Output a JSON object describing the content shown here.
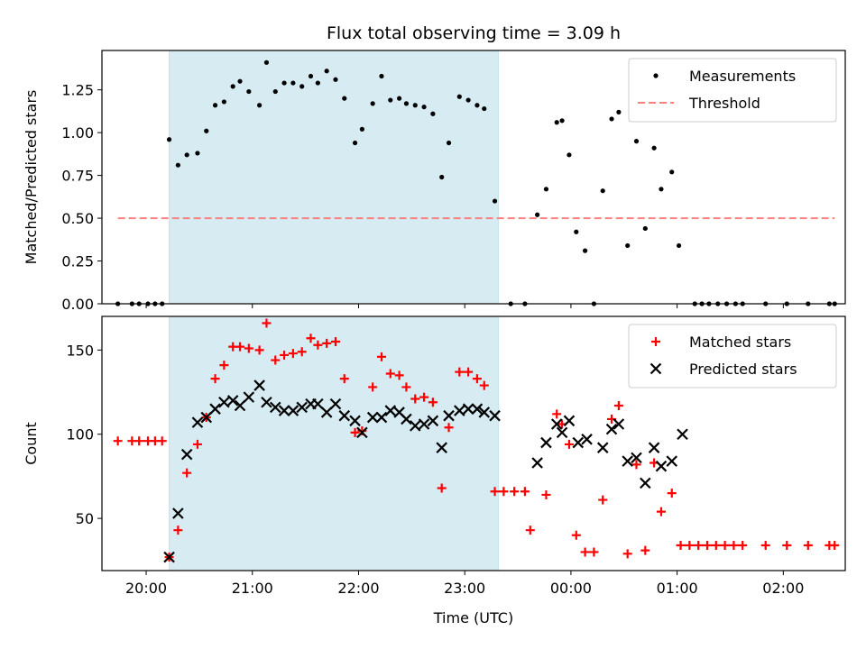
{
  "chart_data": [
    {
      "type": "scatter",
      "title": "Flux total observing time = 3.09 h",
      "xlabel": "",
      "ylabel": "Matched/Predicted stars",
      "ylim": [
        0,
        1.48
      ],
      "xlim": [
        "19:35",
        "02:35"
      ],
      "yticks": [
        0.0,
        0.25,
        0.5,
        0.75,
        1.0,
        1.25
      ],
      "yticklabels": [
        "0.00",
        "0.25",
        "0.50",
        "0.75",
        "1.00",
        "1.25"
      ],
      "shaded_span": {
        "start": "20:13",
        "end": "23:19",
        "color": "#add8e6"
      },
      "legend": {
        "placement": "top-right",
        "entries": [
          "Measurements",
          "Threshold"
        ]
      },
      "series": [
        {
          "name": "Measurements",
          "marker": "dot",
          "color": "#000000",
          "points": [
            [
              "19:44",
              0.0
            ],
            [
              "19:52",
              0.0
            ],
            [
              "19:56",
              0.0
            ],
            [
              "20:01",
              0.0
            ],
            [
              "20:05",
              0.0
            ],
            [
              "20:09",
              0.0
            ],
            [
              "20:13",
              0.96
            ],
            [
              "20:18",
              0.81
            ],
            [
              "20:23",
              0.87
            ],
            [
              "20:29",
              0.88
            ],
            [
              "20:34",
              1.01
            ],
            [
              "20:39",
              1.16
            ],
            [
              "20:44",
              1.18
            ],
            [
              "20:49",
              1.27
            ],
            [
              "20:53",
              1.3
            ],
            [
              "20:58",
              1.24
            ],
            [
              "21:04",
              1.16
            ],
            [
              "21:08",
              1.41
            ],
            [
              "21:13",
              1.24
            ],
            [
              "21:18",
              1.29
            ],
            [
              "21:23",
              1.29
            ],
            [
              "21:28",
              1.27
            ],
            [
              "21:33",
              1.33
            ],
            [
              "21:37",
              1.29
            ],
            [
              "21:42",
              1.36
            ],
            [
              "21:47",
              1.31
            ],
            [
              "21:52",
              1.2
            ],
            [
              "21:58",
              0.94
            ],
            [
              "22:02",
              1.02
            ],
            [
              "22:08",
              1.17
            ],
            [
              "22:13",
              1.33
            ],
            [
              "22:18",
              1.19
            ],
            [
              "22:23",
              1.2
            ],
            [
              "22:27",
              1.17
            ],
            [
              "22:32",
              1.16
            ],
            [
              "22:37",
              1.15
            ],
            [
              "22:42",
              1.11
            ],
            [
              "22:47",
              0.74
            ],
            [
              "22:51",
              0.94
            ],
            [
              "22:57",
              1.21
            ],
            [
              "23:02",
              1.19
            ],
            [
              "23:07",
              1.16
            ],
            [
              "23:11",
              1.14
            ],
            [
              "23:17",
              0.6
            ],
            [
              "23:26",
              0.0
            ],
            [
              "23:34",
              0.0
            ],
            [
              "23:41",
              0.52
            ],
            [
              "23:46",
              0.67
            ],
            [
              "23:52",
              1.06
            ],
            [
              "23:55",
              1.07
            ],
            [
              "23:59",
              0.87
            ],
            [
              "00:03",
              0.42
            ],
            [
              "00:08",
              0.31
            ],
            [
              "00:13",
              0.0
            ],
            [
              "00:18",
              0.66
            ],
            [
              "00:23",
              1.08
            ],
            [
              "00:27",
              1.12
            ],
            [
              "00:32",
              0.34
            ],
            [
              "00:37",
              0.95
            ],
            [
              "00:42",
              0.44
            ],
            [
              "00:47",
              0.91
            ],
            [
              "00:51",
              0.67
            ],
            [
              "00:57",
              0.77
            ],
            [
              "01:01",
              0.34
            ],
            [
              "01:10",
              0.0
            ],
            [
              "01:14",
              0.0
            ],
            [
              "01:18",
              0.0
            ],
            [
              "01:23",
              0.0
            ],
            [
              "01:28",
              0.0
            ],
            [
              "01:33",
              0.0
            ],
            [
              "01:37",
              0.0
            ],
            [
              "01:50",
              0.0
            ],
            [
              "02:02",
              0.0
            ],
            [
              "02:14",
              0.0
            ],
            [
              "02:26",
              0.0
            ],
            [
              "02:29",
              0.0
            ]
          ]
        },
        {
          "name": "Threshold",
          "style": "dashed-line",
          "color": "#ff7f7f",
          "points": [
            [
              "19:44",
              0.5
            ],
            [
              "02:29",
              0.5
            ]
          ]
        }
      ]
    },
    {
      "type": "scatter",
      "title": "",
      "xlabel": "Time (UTC)",
      "ylabel": "Count",
      "ylim": [
        19,
        170
      ],
      "xlim": [
        "19:35",
        "02:35"
      ],
      "yticks": [
        50,
        100,
        150
      ],
      "yticklabels": [
        "50",
        "100",
        "150"
      ],
      "xticks": [
        "20:00",
        "21:00",
        "22:00",
        "23:00",
        "00:00",
        "01:00",
        "02:00"
      ],
      "xticklabels": [
        "20:00",
        "21:00",
        "22:00",
        "23:00",
        "00:00",
        "01:00",
        "02:00"
      ],
      "shaded_span": {
        "start": "20:13",
        "end": "23:19",
        "color": "#add8e6"
      },
      "legend": {
        "placement": "top-right",
        "entries": [
          "Matched stars",
          "Predicted stars"
        ]
      },
      "series": [
        {
          "name": "Matched stars",
          "marker": "plus",
          "color": "#ff0000",
          "points": [
            [
              "19:44",
              96
            ],
            [
              "19:52",
              96
            ],
            [
              "19:56",
              96
            ],
            [
              "20:01",
              96
            ],
            [
              "20:05",
              96
            ],
            [
              "20:09",
              96
            ],
            [
              "20:13",
              27
            ],
            [
              "20:18",
              43
            ],
            [
              "20:23",
              77
            ],
            [
              "20:29",
              94
            ],
            [
              "20:34",
              110
            ],
            [
              "20:39",
              133
            ],
            [
              "20:44",
              141
            ],
            [
              "20:49",
              152
            ],
            [
              "20:53",
              152
            ],
            [
              "20:58",
              151
            ],
            [
              "21:04",
              150
            ],
            [
              "21:08",
              166
            ],
            [
              "21:13",
              144
            ],
            [
              "21:18",
              147
            ],
            [
              "21:23",
              148
            ],
            [
              "21:28",
              149
            ],
            [
              "21:33",
              157
            ],
            [
              "21:37",
              153
            ],
            [
              "21:42",
              154
            ],
            [
              "21:47",
              155
            ],
            [
              "21:52",
              133
            ],
            [
              "21:58",
              101
            ],
            [
              "22:02",
              102
            ],
            [
              "22:08",
              128
            ],
            [
              "22:13",
              146
            ],
            [
              "22:18",
              136
            ],
            [
              "22:23",
              135
            ],
            [
              "22:27",
              128
            ],
            [
              "22:32",
              121
            ],
            [
              "22:37",
              122
            ],
            [
              "22:42",
              119
            ],
            [
              "22:47",
              68
            ],
            [
              "22:51",
              104
            ],
            [
              "22:57",
              137
            ],
            [
              "23:02",
              137
            ],
            [
              "23:07",
              133
            ],
            [
              "23:11",
              129
            ],
            [
              "23:17",
              66
            ],
            [
              "23:22",
              66
            ],
            [
              "23:28",
              66
            ],
            [
              "23:34",
              66
            ],
            [
              "23:37",
              43
            ],
            [
              "23:46",
              64
            ],
            [
              "23:52",
              112
            ],
            [
              "23:55",
              106
            ],
            [
              "23:59",
              94
            ],
            [
              "00:03",
              40
            ],
            [
              "00:08",
              30
            ],
            [
              "00:13",
              30
            ],
            [
              "00:18",
              61
            ],
            [
              "00:23",
              109
            ],
            [
              "00:27",
              117
            ],
            [
              "00:32",
              29
            ],
            [
              "00:37",
              82
            ],
            [
              "00:42",
              31
            ],
            [
              "00:47",
              83
            ],
            [
              "00:51",
              54
            ],
            [
              "00:57",
              65
            ],
            [
              "01:02",
              34
            ],
            [
              "01:07",
              34
            ],
            [
              "01:12",
              34
            ],
            [
              "01:17",
              34
            ],
            [
              "01:22",
              34
            ],
            [
              "01:27",
              34
            ],
            [
              "01:32",
              34
            ],
            [
              "01:37",
              34
            ],
            [
              "01:50",
              34
            ],
            [
              "02:02",
              34
            ],
            [
              "02:14",
              34
            ],
            [
              "02:26",
              34
            ],
            [
              "02:29",
              34
            ]
          ]
        },
        {
          "name": "Predicted stars",
          "marker": "x",
          "color": "#000000",
          "points": [
            [
              "20:13",
              27
            ],
            [
              "20:18",
              53
            ],
            [
              "20:23",
              88
            ],
            [
              "20:29",
              107
            ],
            [
              "20:34",
              110
            ],
            [
              "20:39",
              115
            ],
            [
              "20:44",
              119
            ],
            [
              "20:49",
              120
            ],
            [
              "20:53",
              117
            ],
            [
              "20:58",
              122
            ],
            [
              "21:04",
              129
            ],
            [
              "21:08",
              119
            ],
            [
              "21:13",
              116
            ],
            [
              "21:18",
              114
            ],
            [
              "21:23",
              114
            ],
            [
              "21:28",
              116
            ],
            [
              "21:33",
              118
            ],
            [
              "21:37",
              118
            ],
            [
              "21:42",
              113
            ],
            [
              "21:47",
              118
            ],
            [
              "21:52",
              111
            ],
            [
              "21:58",
              108
            ],
            [
              "22:02",
              101
            ],
            [
              "22:08",
              110
            ],
            [
              "22:13",
              110
            ],
            [
              "22:18",
              114
            ],
            [
              "22:23",
              113
            ],
            [
              "22:27",
              109
            ],
            [
              "22:32",
              105
            ],
            [
              "22:37",
              106
            ],
            [
              "22:42",
              108
            ],
            [
              "22:47",
              92
            ],
            [
              "22:51",
              111
            ],
            [
              "22:57",
              114
            ],
            [
              "23:02",
              115
            ],
            [
              "23:07",
              115
            ],
            [
              "23:11",
              113
            ],
            [
              "23:17",
              111
            ],
            [
              "23:41",
              83
            ],
            [
              "23:46",
              95
            ],
            [
              "23:52",
              106
            ],
            [
              "23:55",
              101
            ],
            [
              "23:59",
              108
            ],
            [
              "00:04",
              95
            ],
            [
              "00:09",
              97
            ],
            [
              "00:18",
              92
            ],
            [
              "00:23",
              103
            ],
            [
              "00:27",
              106
            ],
            [
              "00:32",
              84
            ],
            [
              "00:37",
              86
            ],
            [
              "00:42",
              71
            ],
            [
              "00:47",
              92
            ],
            [
              "00:51",
              81
            ],
            [
              "00:57",
              84
            ],
            [
              "01:03",
              100
            ]
          ]
        }
      ]
    }
  ]
}
